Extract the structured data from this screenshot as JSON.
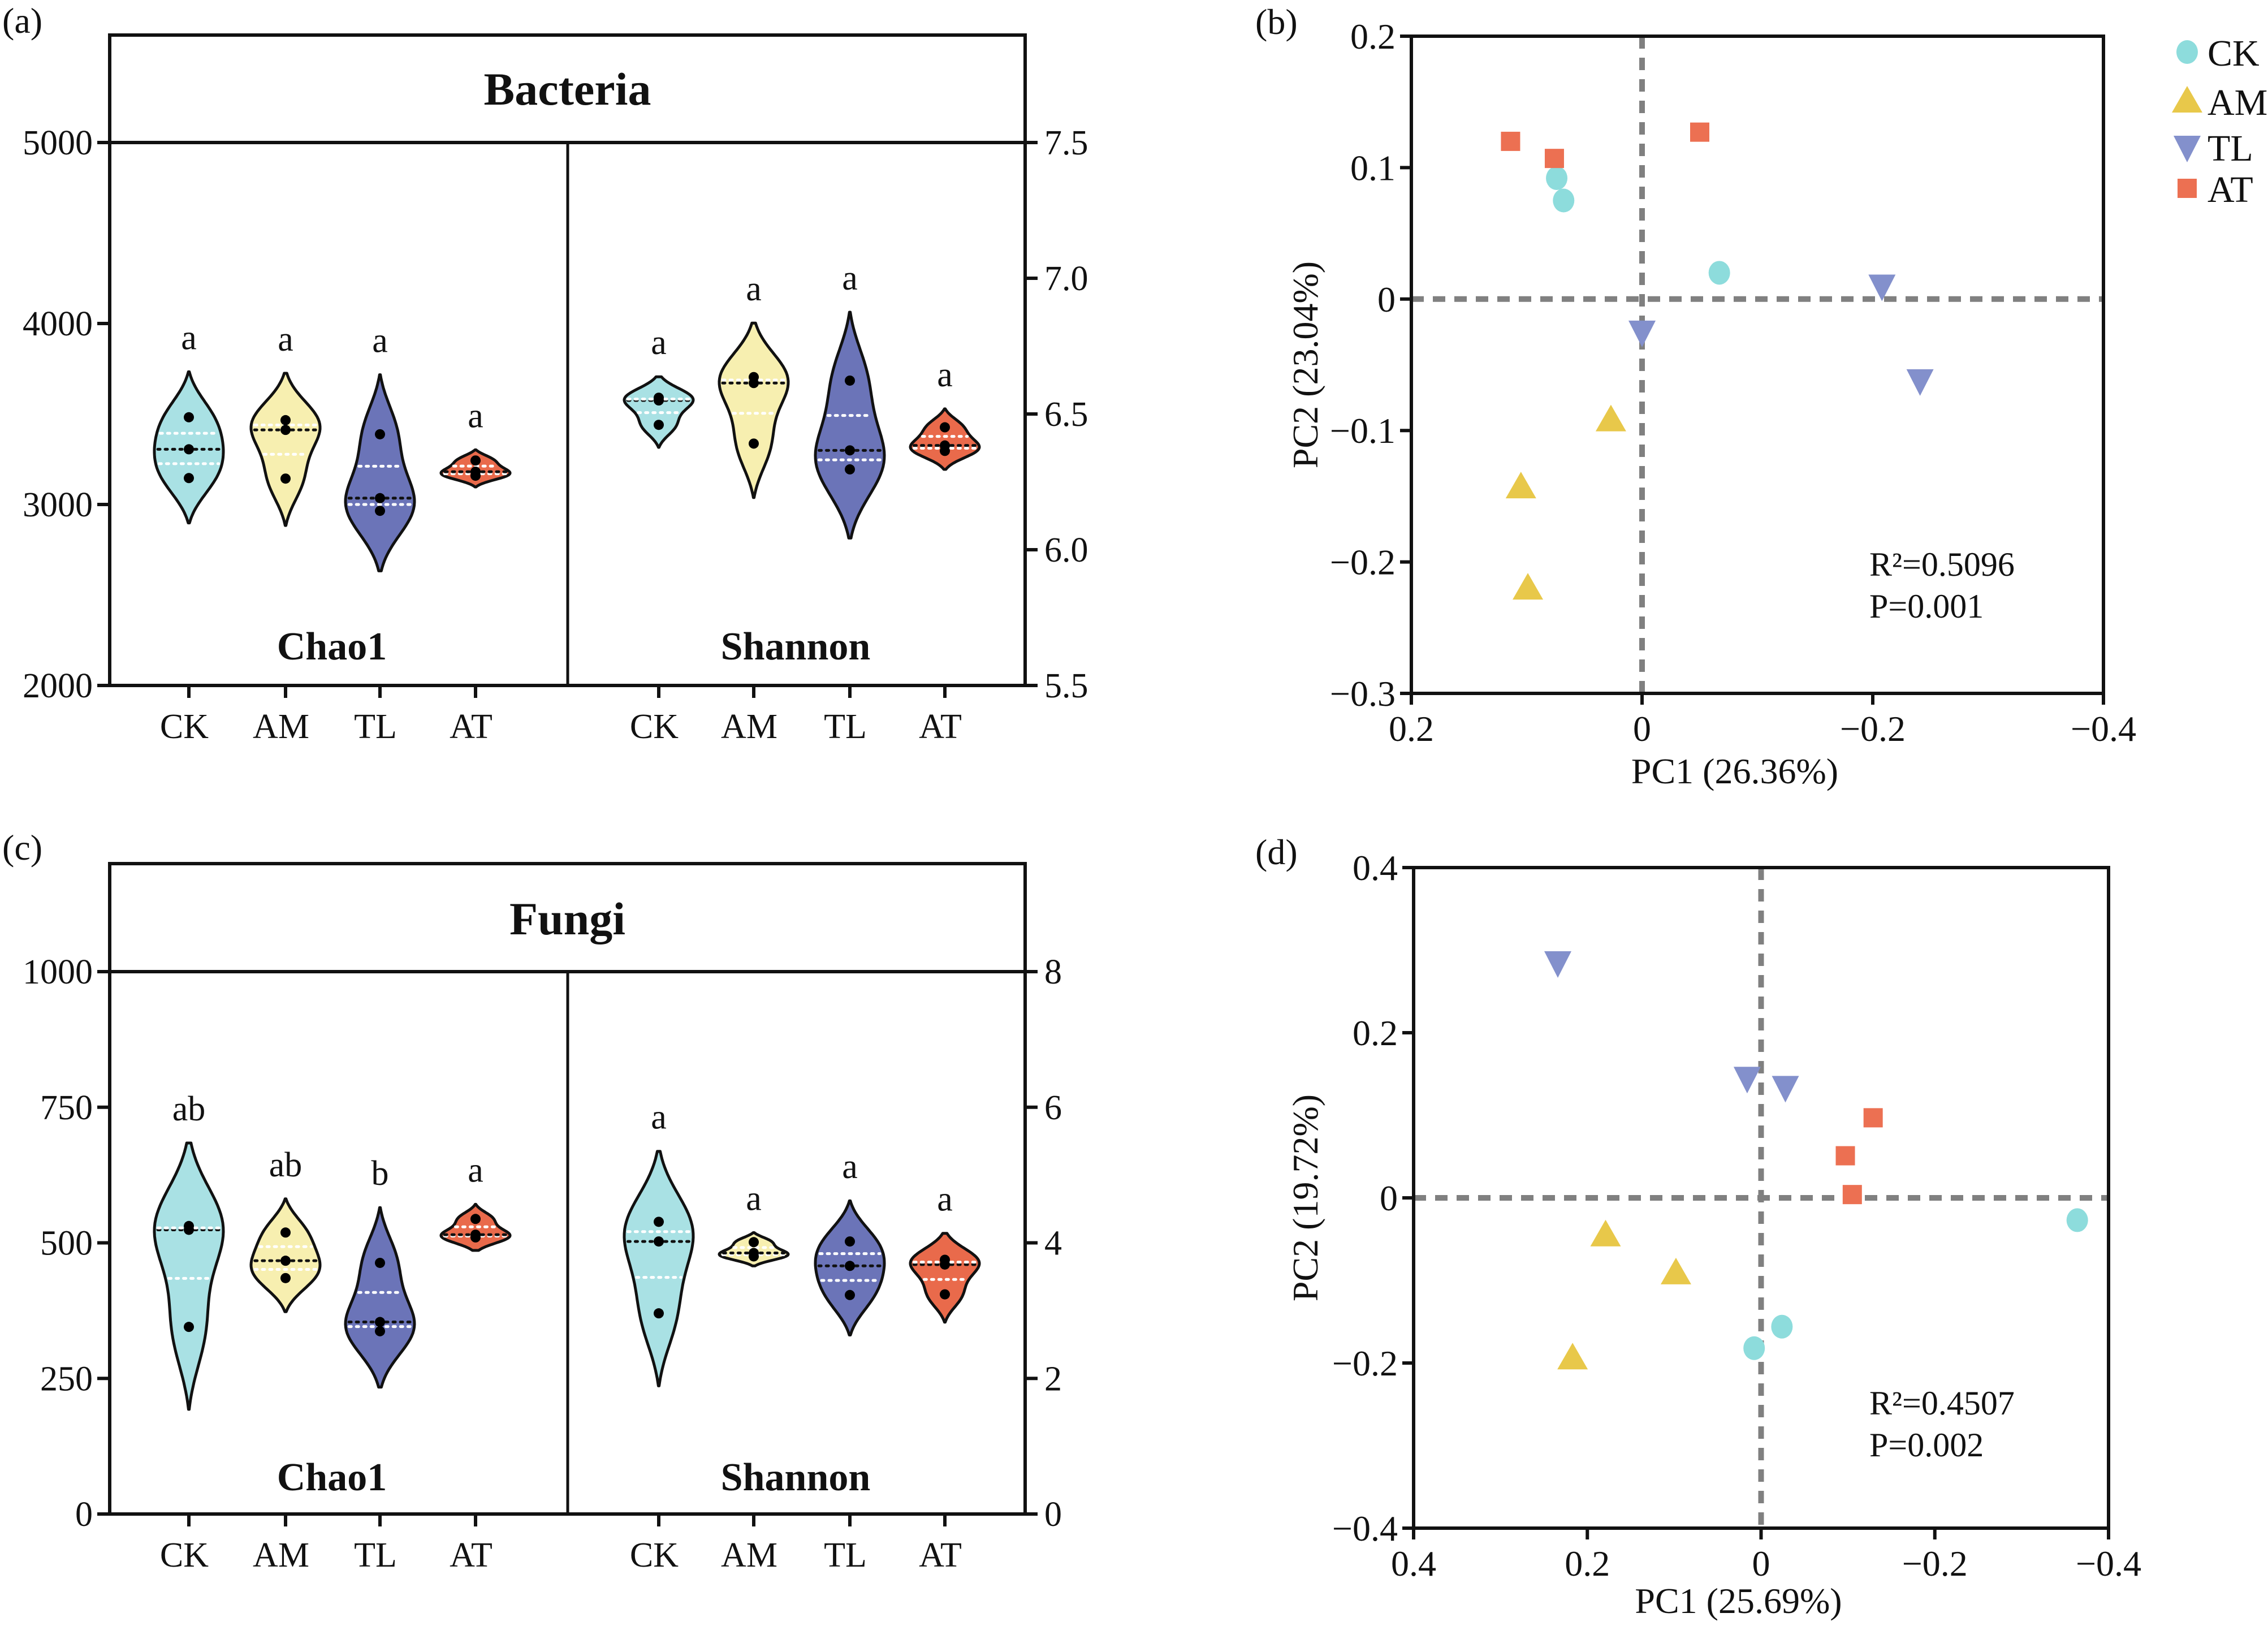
{
  "colors": {
    "CK": "#a9e1e4",
    "AM": "#f7efb0",
    "TL": "#6b74b8",
    "AT": "#e96a4b",
    "CK_pt": "#8ddcdc",
    "AM_pt": "#e8c84a",
    "TL_pt": "#8390cc",
    "AT_pt": "#ec7052",
    "dash": "#808080"
  },
  "chart_data": [
    {
      "type": "violin",
      "panel_label": "(a)",
      "title": "Bacteria",
      "categories": [
        "CK",
        "AM",
        "TL",
        "AT"
      ],
      "panels": [
        {
          "metric": "Chao1",
          "axis": "left",
          "ylim": [
            2000,
            5000
          ],
          "ticks": [
            2000,
            3000,
            4000,
            5000
          ],
          "tick_labels": [
            "2000",
            "3000",
            "4000",
            "5000"
          ],
          "groups": [
            {
              "name": "CK",
              "values": [
                3482,
                3305,
                3146
              ],
              "range": [
                2898,
                3733
              ],
              "letter": "a"
            },
            {
              "name": "AM",
              "values": [
                3466,
                3412,
                3143
              ],
              "range": [
                2884,
                3725
              ],
              "letter": "a"
            },
            {
              "name": "TL",
              "values": [
                3388,
                3035,
                2965
              ],
              "range": [
                2633,
                3717
              ],
              "letter": "a"
            },
            {
              "name": "AT",
              "values": [
                3243,
                3181,
                3159
              ],
              "range": [
                3097,
                3302
              ],
              "letter": "a"
            }
          ]
        },
        {
          "metric": "Shannon",
          "axis": "right",
          "ylim": [
            5.5,
            7.5
          ],
          "ticks": [
            5.5,
            6.0,
            6.5,
            7.0,
            7.5
          ],
          "tick_labels": [
            "5.5",
            "6.0",
            "6.5",
            "7.0",
            "7.5"
          ],
          "groups": [
            {
              "name": "CK",
              "values": [
                6.56,
                6.55,
                6.46
              ],
              "range": [
                6.377,
                6.637
              ],
              "letter": "a"
            },
            {
              "name": "AM",
              "values": [
                6.636,
                6.614,
                6.391
              ],
              "range": [
                6.192,
                6.835
              ],
              "letter": "a"
            },
            {
              "name": "TL",
              "values": [
                6.623,
                6.366,
                6.296
              ],
              "range": [
                6.043,
                6.875
              ],
              "letter": "a"
            },
            {
              "name": "AT",
              "values": [
                6.451,
                6.384,
                6.364
              ],
              "range": [
                6.296,
                6.519
              ],
              "letter": "a"
            }
          ]
        }
      ]
    },
    {
      "type": "scatter",
      "panel_label": "(b)",
      "xlabel": "PC1 (26.36%)",
      "ylabel": "PC2 (23.04%)",
      "xlim": [
        0.2,
        -0.4
      ],
      "ylim": [
        -0.3,
        0.2
      ],
      "xticks": [
        0.2,
        0,
        -0.2,
        -0.4
      ],
      "xtick_labels": [
        "0.2",
        "0",
        "−0.2",
        "−0.4"
      ],
      "yticks": [
        0.2,
        0.1,
        0,
        -0.1,
        -0.2,
        -0.3
      ],
      "ytick_labels": [
        "0.2",
        "0.1",
        "0",
        "−0.1",
        "−0.2",
        "−0.3"
      ],
      "annotation": [
        "R²=0.5096",
        "P=0.001"
      ],
      "legend": {
        "position": "top-right-outside",
        "entries": [
          "CK",
          "AM",
          "TL",
          "AT"
        ]
      },
      "series": [
        {
          "name": "CK",
          "marker": "circle",
          "points": [
            [
              0.074,
              0.092
            ],
            [
              0.068,
              0.075
            ],
            [
              -0.067,
              0.02
            ]
          ]
        },
        {
          "name": "AM",
          "marker": "triangle-up",
          "points": [
            [
              0.027,
              -0.092
            ],
            [
              0.105,
              -0.143
            ],
            [
              0.099,
              -0.22
            ]
          ]
        },
        {
          "name": "TL",
          "marker": "triangle-down",
          "points": [
            [
              -0.208,
              0.01
            ],
            [
              -0.241,
              -0.062
            ],
            [
              0.0,
              -0.025
            ]
          ]
        },
        {
          "name": "AT",
          "marker": "square",
          "points": [
            [
              0.114,
              0.12
            ],
            [
              0.076,
              0.107
            ],
            [
              -0.05,
              0.127
            ]
          ]
        }
      ]
    },
    {
      "type": "violin",
      "panel_label": "(c)",
      "title": "Fungi",
      "categories": [
        "CK",
        "AM",
        "TL",
        "AT"
      ],
      "panels": [
        {
          "metric": "Chao1",
          "axis": "left",
          "ylim": [
            0,
            1000
          ],
          "ticks": [
            0,
            250,
            500,
            750,
            1000
          ],
          "tick_labels": [
            "0",
            "250",
            "500",
            "750",
            "1000"
          ],
          "groups": [
            {
              "name": "CK",
              "values": [
                531,
                524,
                345
              ],
              "range": [
                193,
                684
              ],
              "letter": "ab"
            },
            {
              "name": "AM",
              "values": [
                519,
                467,
                435
              ],
              "range": [
                373,
                581
              ],
              "letter": "ab"
            },
            {
              "name": "TL",
              "values": [
                463,
                354,
                337
              ],
              "range": [
                234,
                565
              ],
              "letter": "b"
            },
            {
              "name": "AT",
              "values": [
                544,
                515,
                510
              ],
              "range": [
                486,
                571
              ],
              "letter": "a"
            }
          ]
        },
        {
          "metric": "Shannon",
          "axis": "right",
          "ylim": [
            0,
            8
          ],
          "ticks": [
            0,
            2,
            4,
            6,
            8
          ],
          "tick_labels": [
            "0",
            "2",
            "4",
            "6",
            "8"
          ],
          "groups": [
            {
              "name": "CK",
              "values": [
                4.31,
                4.02,
                2.96
              ],
              "range": [
                1.89,
                5.35
              ],
              "letter": "a"
            },
            {
              "name": "AM",
              "values": [
                4.01,
                3.85,
                3.8
              ],
              "range": [
                3.66,
                4.15
              ],
              "letter": "a"
            },
            {
              "name": "TL",
              "values": [
                4.02,
                3.66,
                3.23
              ],
              "range": [
                2.64,
                4.62
              ],
              "letter": "a"
            },
            {
              "name": "AT",
              "values": [
                3.75,
                3.68,
                3.24
              ],
              "range": [
                2.83,
                4.14
              ],
              "letter": "a"
            }
          ]
        }
      ]
    },
    {
      "type": "scatter",
      "panel_label": "(d)",
      "xlabel": "PC1 (25.69%)",
      "ylabel": "PC2 (19.72%)",
      "xlim": [
        0.4,
        -0.4
      ],
      "ylim": [
        -0.4,
        0.4
      ],
      "xticks": [
        0.4,
        0.2,
        0,
        -0.2,
        -0.4
      ],
      "xtick_labels": [
        "0.4",
        "0.2",
        "0",
        "−0.2",
        "−0.4"
      ],
      "yticks": [
        0.4,
        0.2,
        0,
        -0.2,
        -0.4
      ],
      "ytick_labels": [
        "0.4",
        "0.2",
        "0",
        "−0.2",
        "−0.4"
      ],
      "annotation": [
        "R²=0.4507",
        "P=0.002"
      ],
      "series": [
        {
          "name": "CK",
          "marker": "circle",
          "points": [
            [
              -0.364,
              -0.027
            ],
            [
              -0.024,
              -0.156
            ],
            [
              0.008,
              -0.182
            ]
          ]
        },
        {
          "name": "AM",
          "marker": "triangle-up",
          "points": [
            [
              0.179,
              -0.045
            ],
            [
              0.098,
              -0.091
            ],
            [
              0.217,
              -0.194
            ]
          ]
        },
        {
          "name": "TL",
          "marker": "triangle-down",
          "points": [
            [
              0.234,
              0.285
            ],
            [
              0.016,
              0.145
            ],
            [
              -0.028,
              0.134
            ]
          ]
        },
        {
          "name": "AT",
          "marker": "square",
          "points": [
            [
              -0.129,
              0.097
            ],
            [
              -0.097,
              0.051
            ],
            [
              -0.105,
              0.004
            ]
          ]
        }
      ]
    }
  ]
}
